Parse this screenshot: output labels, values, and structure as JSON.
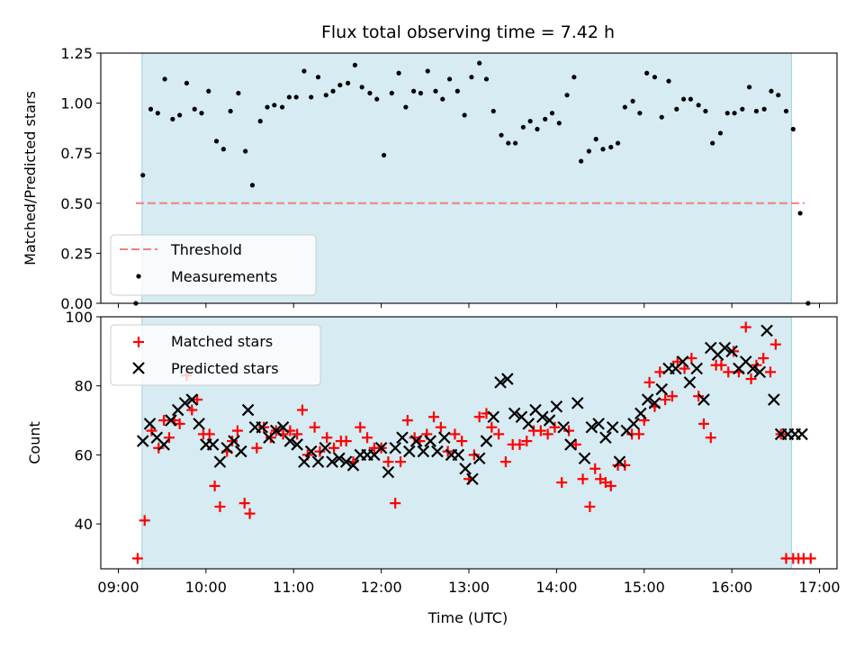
{
  "figure": {
    "title": "Flux total observing time = 7.42 h",
    "xlabel": "Time (UTC)",
    "x_tick_labels": [
      "09:00",
      "10:00",
      "11:00",
      "12:00",
      "13:00",
      "14:00",
      "15:00",
      "16:00",
      "17:00"
    ]
  },
  "colors": {
    "span": "#add8e6",
    "threshold": "#f08080",
    "matched": "#ff0000",
    "predicted": "#000000",
    "measurement": "#000000"
  },
  "chart_data": [
    {
      "type": "scatter",
      "title": "Flux total observing time = 7.42 h",
      "xlabel": "",
      "ylabel": "Matched/Predicted stars",
      "xlim": [
        8.8,
        17.2
      ],
      "ylim": [
        0,
        1.25
      ],
      "yticks": [
        0,
        0.25,
        0.5,
        0.75,
        1.0,
        1.25
      ],
      "ytick_labels": [
        "0.00",
        "0.25",
        "0.50",
        "0.75",
        "1.00",
        "1.25"
      ],
      "observing_span": [
        9.27,
        16.68
      ],
      "legend_position": "lower-left",
      "threshold": {
        "name": "Threshold",
        "y": 0.5,
        "x": [
          9.2,
          16.83
        ]
      },
      "series": [
        {
          "name": "Measurements",
          "marker": "dot",
          "x": [
            9.2,
            9.28,
            9.37,
            9.45,
            9.53,
            9.62,
            9.7,
            9.78,
            9.87,
            9.95,
            10.03,
            10.12,
            10.2,
            10.28,
            10.37,
            10.45,
            10.53,
            10.62,
            10.7,
            10.78,
            10.87,
            10.95,
            11.03,
            11.12,
            11.2,
            11.28,
            11.37,
            11.45,
            11.53,
            11.62,
            11.7,
            11.78,
            11.87,
            11.95,
            12.03,
            12.12,
            12.2,
            12.28,
            12.37,
            12.45,
            12.53,
            12.62,
            12.7,
            12.78,
            12.87,
            12.95,
            13.03,
            13.12,
            13.2,
            13.28,
            13.37,
            13.45,
            13.53,
            13.62,
            13.7,
            13.78,
            13.87,
            13.95,
            14.03,
            14.12,
            14.2,
            14.28,
            14.37,
            14.45,
            14.53,
            14.62,
            14.7,
            14.78,
            14.87,
            14.95,
            15.03,
            15.12,
            15.2,
            15.28,
            15.37,
            15.45,
            15.53,
            15.62,
            15.7,
            15.78,
            15.87,
            15.95,
            16.03,
            16.12,
            16.2,
            16.28,
            16.37,
            16.45,
            16.53,
            16.62,
            16.7,
            16.78,
            16.87
          ],
          "y": [
            0.0,
            0.64,
            0.97,
            0.95,
            1.12,
            0.92,
            0.94,
            1.1,
            0.97,
            0.95,
            1.06,
            0.81,
            0.77,
            0.96,
            1.05,
            0.76,
            0.59,
            0.91,
            0.98,
            0.99,
            0.98,
            1.03,
            1.03,
            1.16,
            1.03,
            1.13,
            1.04,
            1.06,
            1.09,
            1.1,
            1.19,
            1.08,
            1.05,
            1.02,
            0.74,
            1.05,
            1.15,
            0.98,
            1.06,
            1.05,
            1.16,
            1.06,
            1.02,
            1.12,
            1.06,
            0.94,
            1.13,
            1.2,
            1.12,
            0.96,
            0.84,
            0.8,
            0.8,
            0.88,
            0.91,
            0.87,
            0.92,
            0.95,
            0.9,
            1.04,
            1.13,
            0.71,
            0.76,
            0.82,
            0.77,
            0.78,
            0.8,
            0.98,
            1.01,
            0.95,
            1.15,
            1.13,
            0.93,
            1.11,
            0.97,
            1.02,
            1.02,
            0.99,
            0.96,
            0.8,
            0.85,
            0.95,
            0.95,
            0.97,
            1.08,
            0.96,
            0.97,
            1.06,
            1.04,
            0.96,
            0.87,
            0.45,
            0.0
          ]
        }
      ]
    },
    {
      "type": "scatter",
      "title": "",
      "xlabel": "Time (UTC)",
      "ylabel": "Count",
      "xlim": [
        8.8,
        17.2
      ],
      "ylim": [
        27,
        100
      ],
      "yticks": [
        40,
        60,
        80,
        100
      ],
      "ytick_labels": [
        "40",
        "60",
        "80",
        "100"
      ],
      "observing_span": [
        9.27,
        16.68
      ],
      "legend_position": "upper-left",
      "series": [
        {
          "name": "Matched stars",
          "marker": "plus",
          "x": [
            9.22,
            9.3,
            9.38,
            9.46,
            9.52,
            9.58,
            9.64,
            9.7,
            9.78,
            9.84,
            9.9,
            9.97,
            10.04,
            10.1,
            10.16,
            10.24,
            10.3,
            10.36,
            10.44,
            10.5,
            10.58,
            10.66,
            10.74,
            10.8,
            10.88,
            10.96,
            11.04,
            11.1,
            11.16,
            11.24,
            11.3,
            11.38,
            11.46,
            11.54,
            11.6,
            11.68,
            11.76,
            11.84,
            11.92,
            12.0,
            12.08,
            12.16,
            12.22,
            12.3,
            12.38,
            12.44,
            12.52,
            12.6,
            12.68,
            12.76,
            12.84,
            12.92,
            13.0,
            13.06,
            13.12,
            13.2,
            13.26,
            13.34,
            13.42,
            13.5,
            13.58,
            13.66,
            13.74,
            13.82,
            13.9,
            13.98,
            14.06,
            14.14,
            14.22,
            14.3,
            14.38,
            14.44,
            14.5,
            14.56,
            14.62,
            14.7,
            14.78,
            14.86,
            14.94,
            15.0,
            15.06,
            15.12,
            15.18,
            15.24,
            15.32,
            15.38,
            15.46,
            15.54,
            15.62,
            15.68,
            15.76,
            15.82,
            15.88,
            15.96,
            16.02,
            16.08,
            16.16,
            16.22,
            16.28,
            16.36,
            16.44,
            16.5,
            16.56,
            16.62,
            16.7,
            16.76,
            16.82,
            16.9
          ],
          "y": [
            30,
            41,
            67,
            62,
            70,
            65,
            70,
            69,
            83,
            73,
            76,
            66,
            66,
            51,
            45,
            61,
            64,
            67,
            46,
            43,
            62,
            68,
            65,
            67,
            66,
            67,
            66,
            73,
            60,
            68,
            61,
            65,
            62,
            64,
            64,
            58,
            68,
            65,
            62,
            62,
            58,
            46,
            58,
            70,
            65,
            64,
            66,
            71,
            68,
            61,
            66,
            64,
            53,
            60,
            71,
            72,
            68,
            66,
            58,
            63,
            63,
            64,
            67,
            67,
            66,
            68,
            52,
            67,
            63,
            53,
            45,
            56,
            53,
            52,
            51,
            57,
            57,
            66,
            66,
            70,
            81,
            74,
            84,
            76,
            77,
            87,
            85,
            88,
            77,
            69,
            65,
            86,
            86,
            84,
            90,
            84,
            97,
            82,
            86,
            88,
            84,
            92,
            66,
            30,
            30,
            30,
            30,
            30
          ],
          "y_note": ""
        },
        {
          "name": "Predicted stars",
          "marker": "x",
          "x": [
            9.28,
            9.36,
            9.44,
            9.52,
            9.6,
            9.68,
            9.76,
            9.84,
            9.92,
            10.0,
            10.08,
            10.16,
            10.24,
            10.32,
            10.4,
            10.48,
            10.56,
            10.64,
            10.72,
            10.8,
            10.88,
            10.96,
            11.04,
            11.12,
            11.2,
            11.28,
            11.36,
            11.44,
            11.52,
            11.6,
            11.68,
            11.76,
            11.84,
            11.92,
            12.0,
            12.08,
            12.16,
            12.24,
            12.32,
            12.4,
            12.48,
            12.56,
            12.64,
            12.72,
            12.8,
            12.88,
            12.96,
            13.04,
            13.12,
            13.2,
            13.28,
            13.36,
            13.44,
            13.52,
            13.6,
            13.68,
            13.76,
            13.84,
            13.92,
            14.0,
            14.08,
            14.16,
            14.24,
            14.32,
            14.4,
            14.48,
            14.56,
            14.64,
            14.72,
            14.8,
            14.88,
            14.96,
            15.04,
            15.12,
            15.2,
            15.28,
            15.36,
            15.44,
            15.52,
            15.6,
            15.68,
            15.76,
            15.84,
            15.92,
            16.0,
            16.08,
            16.16,
            16.24,
            16.32,
            16.4,
            16.48,
            16.56,
            16.64,
            16.72,
            16.8
          ],
          "y": [
            64,
            69,
            65,
            63,
            70,
            73,
            75,
            76,
            69,
            63,
            63,
            58,
            62,
            64,
            61,
            73,
            68,
            68,
            65,
            67,
            68,
            64,
            63,
            58,
            61,
            58,
            62,
            58,
            59,
            58,
            57,
            60,
            60,
            60,
            62,
            55,
            62,
            65,
            61,
            64,
            61,
            64,
            61,
            65,
            60,
            60,
            56,
            53,
            59,
            64,
            71,
            81,
            82,
            72,
            71,
            69,
            73,
            71,
            70,
            74,
            68,
            63,
            75,
            59,
            68,
            69,
            65,
            68,
            58,
            67,
            69,
            72,
            76,
            75,
            79,
            85,
            85,
            87,
            81,
            85,
            76,
            91,
            89,
            91,
            90,
            85,
            87,
            85,
            84,
            96,
            76,
            66,
            66,
            66,
            66
          ],
          "y_note": ""
        }
      ]
    }
  ]
}
